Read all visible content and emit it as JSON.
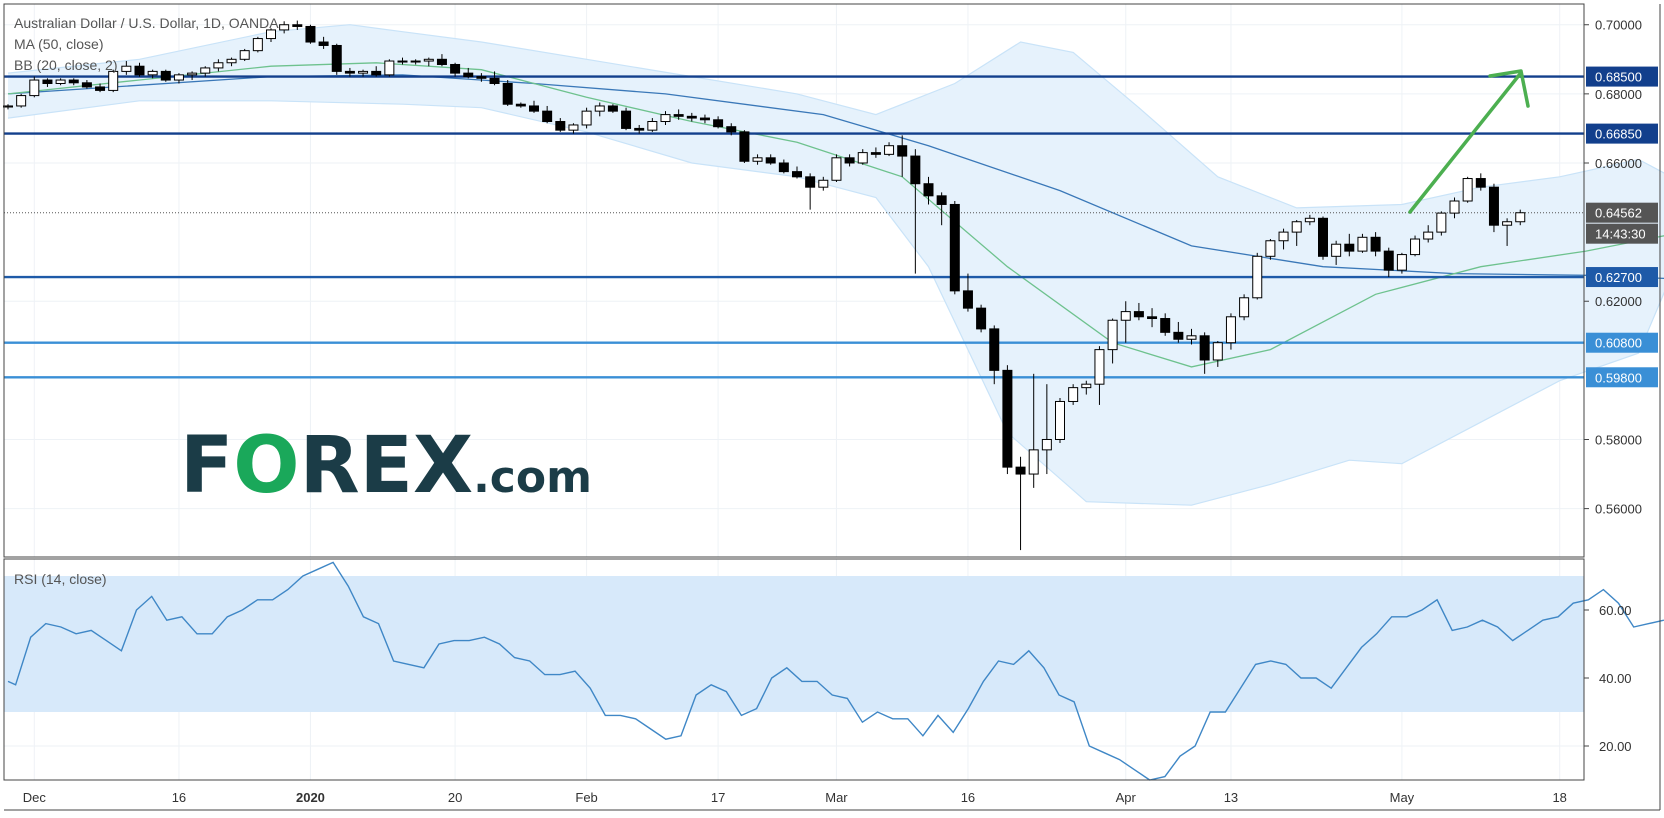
{
  "chart_data": {
    "type": "candlestick",
    "title": "Australian Dollar / U.S. Dollar, 1D, OANDA",
    "indicators": [
      "MA (50, close)",
      "BB (20, close, 2)"
    ],
    "rsi_label": "RSI (14, close)",
    "price_axis": {
      "ylim": [
        0.546,
        0.706
      ],
      "ticks": [
        "0.70000",
        "0.68000",
        "0.66000",
        "0.62000",
        "0.58000",
        "0.56000"
      ]
    },
    "rsi_axis": {
      "ylim": [
        10,
        75
      ],
      "ticks": [
        "60.00",
        "40.00",
        "20.00"
      ],
      "band": [
        30,
        70
      ]
    },
    "x_labels": [
      {
        "text": "Dec",
        "bar": 2
      },
      {
        "text": "16",
        "bar": 13
      },
      {
        "text": "2020",
        "bar": 23
      },
      {
        "text": "20",
        "bar": 34
      },
      {
        "text": "Feb",
        "bar": 44
      },
      {
        "text": "17",
        "bar": 54
      },
      {
        "text": "Mar",
        "bar": 63
      },
      {
        "text": "16",
        "bar": 73
      },
      {
        "text": "Apr",
        "bar": 85
      },
      {
        "text": "13",
        "bar": 93
      },
      {
        "text": "May",
        "bar": 106
      },
      {
        "text": "18",
        "bar": 118
      },
      {
        "text": "",
        "bar": 128
      }
    ],
    "levels": [
      {
        "value": 0.685,
        "label": "0.68500",
        "color": "#123f8c"
      },
      {
        "value": 0.6685,
        "label": "0.66850",
        "color": "#123f8c"
      },
      {
        "value": 0.627,
        "label": "0.62700",
        "color": "#1e5aa8"
      },
      {
        "value": 0.608,
        "label": "0.60800",
        "color": "#3a8fd6"
      },
      {
        "value": 0.598,
        "label": "0.59800",
        "color": "#3a8fd6"
      }
    ],
    "last_price": {
      "value": 0.64562,
      "label": "0.64562",
      "countdown": "14:43:30"
    },
    "candles": [
      [
        0.6762,
        0.677,
        0.6755,
        0.6765
      ],
      [
        0.6765,
        0.68,
        0.676,
        0.6795
      ],
      [
        0.6795,
        0.685,
        0.679,
        0.684
      ],
      [
        0.684,
        0.6845,
        0.682,
        0.683
      ],
      [
        0.683,
        0.6845,
        0.6825,
        0.684
      ],
      [
        0.684,
        0.6845,
        0.6825,
        0.6832
      ],
      [
        0.6832,
        0.684,
        0.6815,
        0.682
      ],
      [
        0.682,
        0.683,
        0.6805,
        0.681
      ],
      [
        0.681,
        0.687,
        0.6805,
        0.6865
      ],
      [
        0.6865,
        0.6895,
        0.6855,
        0.688
      ],
      [
        0.688,
        0.689,
        0.685,
        0.6855
      ],
      [
        0.6855,
        0.687,
        0.6845,
        0.6865
      ],
      [
        0.6865,
        0.687,
        0.6835,
        0.684
      ],
      [
        0.684,
        0.686,
        0.683,
        0.6855
      ],
      [
        0.6855,
        0.6865,
        0.684,
        0.686
      ],
      [
        0.686,
        0.688,
        0.685,
        0.6875
      ],
      [
        0.6875,
        0.69,
        0.6865,
        0.689
      ],
      [
        0.689,
        0.6905,
        0.688,
        0.69
      ],
      [
        0.69,
        0.693,
        0.6895,
        0.6925
      ],
      [
        0.6925,
        0.6965,
        0.692,
        0.696
      ],
      [
        0.696,
        0.699,
        0.695,
        0.6985
      ],
      [
        0.6985,
        0.701,
        0.6975,
        0.7
      ],
      [
        0.7,
        0.7012,
        0.6985,
        0.6995
      ],
      [
        0.6995,
        0.7,
        0.6945,
        0.695
      ],
      [
        0.695,
        0.6965,
        0.693,
        0.694
      ],
      [
        0.694,
        0.6945,
        0.6855,
        0.6865
      ],
      [
        0.6865,
        0.6875,
        0.685,
        0.686
      ],
      [
        0.686,
        0.687,
        0.685,
        0.6865
      ],
      [
        0.6865,
        0.688,
        0.685,
        0.6855
      ],
      [
        0.6855,
        0.69,
        0.685,
        0.6895
      ],
      [
        0.6895,
        0.6905,
        0.6885,
        0.6895
      ],
      [
        0.6895,
        0.69,
        0.6885,
        0.6895
      ],
      [
        0.6895,
        0.6905,
        0.688,
        0.69
      ],
      [
        0.69,
        0.6915,
        0.688,
        0.6885
      ],
      [
        0.6885,
        0.689,
        0.685,
        0.686
      ],
      [
        0.686,
        0.6875,
        0.6845,
        0.685
      ],
      [
        0.685,
        0.686,
        0.6835,
        0.6845
      ],
      [
        0.6845,
        0.6865,
        0.6825,
        0.683
      ],
      [
        0.683,
        0.684,
        0.6765,
        0.677
      ],
      [
        0.677,
        0.6775,
        0.676,
        0.6765
      ],
      [
        0.6765,
        0.678,
        0.6745,
        0.675
      ],
      [
        0.675,
        0.6765,
        0.6715,
        0.672
      ],
      [
        0.672,
        0.673,
        0.669,
        0.6695
      ],
      [
        0.6695,
        0.6715,
        0.6685,
        0.671
      ],
      [
        0.671,
        0.676,
        0.67,
        0.675
      ],
      [
        0.675,
        0.6775,
        0.6735,
        0.6765
      ],
      [
        0.6765,
        0.677,
        0.6745,
        0.675
      ],
      [
        0.675,
        0.676,
        0.6695,
        0.67
      ],
      [
        0.67,
        0.671,
        0.6685,
        0.6695
      ],
      [
        0.6695,
        0.673,
        0.669,
        0.672
      ],
      [
        0.672,
        0.675,
        0.671,
        0.674
      ],
      [
        0.674,
        0.6755,
        0.6725,
        0.6735
      ],
      [
        0.6735,
        0.6745,
        0.672,
        0.673
      ],
      [
        0.673,
        0.674,
        0.6715,
        0.6725
      ],
      [
        0.6725,
        0.6735,
        0.67,
        0.6705
      ],
      [
        0.6705,
        0.6715,
        0.668,
        0.669
      ],
      [
        0.669,
        0.6695,
        0.66,
        0.6605
      ],
      [
        0.6605,
        0.6625,
        0.6595,
        0.6615
      ],
      [
        0.6615,
        0.6625,
        0.6595,
        0.66
      ],
      [
        0.66,
        0.661,
        0.657,
        0.6575
      ],
      [
        0.6575,
        0.659,
        0.6555,
        0.656
      ],
      [
        0.656,
        0.657,
        0.6465,
        0.653
      ],
      [
        0.653,
        0.656,
        0.652,
        0.655
      ],
      [
        0.655,
        0.6625,
        0.6545,
        0.6615
      ],
      [
        0.6615,
        0.6625,
        0.659,
        0.66
      ],
      [
        0.66,
        0.664,
        0.6595,
        0.663
      ],
      [
        0.663,
        0.6645,
        0.6615,
        0.6625
      ],
      [
        0.6625,
        0.666,
        0.662,
        0.665
      ],
      [
        0.665,
        0.668,
        0.656,
        0.662
      ],
      [
        0.662,
        0.664,
        0.628,
        0.654
      ],
      [
        0.654,
        0.656,
        0.648,
        0.6505
      ],
      [
        0.6505,
        0.6515,
        0.642,
        0.648
      ],
      [
        0.648,
        0.649,
        0.622,
        0.623
      ],
      [
        0.623,
        0.628,
        0.617,
        0.618
      ],
      [
        0.618,
        0.619,
        0.611,
        0.612
      ],
      [
        0.612,
        0.613,
        0.596,
        0.6
      ],
      [
        0.6,
        0.6015,
        0.57,
        0.572
      ],
      [
        0.572,
        0.575,
        0.548,
        0.57
      ],
      [
        0.57,
        0.599,
        0.566,
        0.577
      ],
      [
        0.577,
        0.596,
        0.57,
        0.58
      ],
      [
        0.58,
        0.592,
        0.579,
        0.591
      ],
      [
        0.591,
        0.596,
        0.59,
        0.595
      ],
      [
        0.595,
        0.597,
        0.593,
        0.596
      ],
      [
        0.596,
        0.607,
        0.59,
        0.606
      ],
      [
        0.606,
        0.615,
        0.602,
        0.6145
      ],
      [
        0.6145,
        0.62,
        0.608,
        0.617
      ],
      [
        0.617,
        0.6195,
        0.6145,
        0.6155
      ],
      [
        0.6155,
        0.618,
        0.6125,
        0.615
      ],
      [
        0.615,
        0.6165,
        0.61,
        0.611
      ],
      [
        0.611,
        0.614,
        0.608,
        0.609
      ],
      [
        0.609,
        0.612,
        0.6075,
        0.61
      ],
      [
        0.61,
        0.611,
        0.599,
        0.603
      ],
      [
        0.603,
        0.6085,
        0.601,
        0.608
      ],
      [
        0.608,
        0.6165,
        0.606,
        0.6155
      ],
      [
        0.6155,
        0.622,
        0.6145,
        0.621
      ],
      [
        0.621,
        0.634,
        0.6205,
        0.633
      ],
      [
        0.633,
        0.638,
        0.632,
        0.6375
      ],
      [
        0.6375,
        0.641,
        0.635,
        0.64
      ],
      [
        0.64,
        0.6435,
        0.636,
        0.643
      ],
      [
        0.643,
        0.645,
        0.642,
        0.644
      ],
      [
        0.644,
        0.6445,
        0.632,
        0.633
      ],
      [
        0.633,
        0.6375,
        0.6305,
        0.6365
      ],
      [
        0.6365,
        0.6395,
        0.633,
        0.6345
      ],
      [
        0.6345,
        0.6395,
        0.634,
        0.6385
      ],
      [
        0.6385,
        0.64,
        0.633,
        0.6345
      ],
      [
        0.6345,
        0.6355,
        0.627,
        0.629
      ],
      [
        0.629,
        0.634,
        0.628,
        0.6335
      ],
      [
        0.6335,
        0.639,
        0.633,
        0.638
      ],
      [
        0.638,
        0.642,
        0.637,
        0.64
      ],
      [
        0.64,
        0.646,
        0.639,
        0.6455
      ],
      [
        0.6455,
        0.65,
        0.644,
        0.649
      ],
      [
        0.649,
        0.656,
        0.6485,
        0.6555
      ],
      [
        0.6555,
        0.657,
        0.652,
        0.653
      ],
      [
        0.653,
        0.654,
        0.64,
        0.642
      ],
      [
        0.642,
        0.644,
        0.636,
        0.643
      ],
      [
        0.643,
        0.6465,
        0.642,
        0.6456
      ]
    ],
    "ma50": [
      [
        0,
        0.68
      ],
      [
        20,
        0.685
      ],
      [
        30,
        0.6855
      ],
      [
        40,
        0.683
      ],
      [
        50,
        0.68
      ],
      [
        62,
        0.674
      ],
      [
        70,
        0.665
      ],
      [
        80,
        0.652
      ],
      [
        90,
        0.636
      ],
      [
        100,
        0.63
      ],
      [
        110,
        0.628
      ],
      [
        120,
        0.6275
      ],
      [
        126,
        0.6266
      ]
    ],
    "bb_mid": [
      [
        0,
        0.68
      ],
      [
        10,
        0.684
      ],
      [
        20,
        0.688
      ],
      [
        28,
        0.689
      ],
      [
        36,
        0.687
      ],
      [
        44,
        0.679
      ],
      [
        52,
        0.672
      ],
      [
        60,
        0.666
      ],
      [
        68,
        0.656
      ],
      [
        76,
        0.63
      ],
      [
        84,
        0.608
      ],
      [
        90,
        0.601
      ],
      [
        96,
        0.606
      ],
      [
        104,
        0.622
      ],
      [
        112,
        0.63
      ],
      [
        120,
        0.6345
      ],
      [
        126,
        0.639
      ]
    ],
    "bb_upper": [
      [
        0,
        0.686
      ],
      [
        10,
        0.69
      ],
      [
        20,
        0.698
      ],
      [
        26,
        0.7
      ],
      [
        30,
        0.698
      ],
      [
        36,
        0.695
      ],
      [
        44,
        0.69
      ],
      [
        52,
        0.685
      ],
      [
        60,
        0.68
      ],
      [
        66,
        0.674
      ],
      [
        72,
        0.683
      ],
      [
        77,
        0.695
      ],
      [
        81,
        0.692
      ],
      [
        86,
        0.676
      ],
      [
        92,
        0.656
      ],
      [
        98,
        0.647
      ],
      [
        106,
        0.648
      ],
      [
        112,
        0.653
      ],
      [
        118,
        0.656
      ],
      [
        124,
        0.661
      ],
      [
        126,
        0.657
      ]
    ],
    "bb_lower": [
      [
        0,
        0.673
      ],
      [
        10,
        0.678
      ],
      [
        20,
        0.678
      ],
      [
        30,
        0.677
      ],
      [
        36,
        0.676
      ],
      [
        44,
        0.669
      ],
      [
        52,
        0.66
      ],
      [
        60,
        0.656
      ],
      [
        66,
        0.65
      ],
      [
        70,
        0.63
      ],
      [
        76,
        0.582
      ],
      [
        82,
        0.562
      ],
      [
        90,
        0.561
      ],
      [
        96,
        0.567
      ],
      [
        102,
        0.574
      ],
      [
        106,
        0.573
      ],
      [
        112,
        0.585
      ],
      [
        118,
        0.597
      ],
      [
        124,
        0.605
      ],
      [
        126,
        0.623
      ]
    ],
    "rsi": [
      [
        0,
        39
      ],
      [
        1,
        38
      ],
      [
        3,
        52
      ],
      [
        5,
        56
      ],
      [
        7,
        55
      ],
      [
        9,
        53
      ],
      [
        11,
        54
      ],
      [
        13,
        51
      ],
      [
        15,
        48
      ],
      [
        17,
        60
      ],
      [
        19,
        64
      ],
      [
        21,
        57
      ],
      [
        23,
        58
      ],
      [
        25,
        53
      ],
      [
        27,
        53
      ],
      [
        29,
        58
      ],
      [
        31,
        60
      ],
      [
        33,
        63
      ],
      [
        35,
        63
      ],
      [
        37,
        66
      ],
      [
        39,
        70
      ],
      [
        41,
        72
      ],
      [
        43,
        74
      ],
      [
        45,
        67
      ],
      [
        47,
        58
      ],
      [
        49,
        56
      ],
      [
        51,
        45
      ],
      [
        53,
        44
      ],
      [
        55,
        43
      ],
      [
        57,
        50
      ],
      [
        59,
        51
      ],
      [
        61,
        51
      ],
      [
        63,
        52
      ],
      [
        65,
        50
      ],
      [
        67,
        46
      ],
      [
        69,
        45
      ],
      [
        71,
        41
      ],
      [
        73,
        41
      ],
      [
        75,
        42
      ],
      [
        77,
        37
      ],
      [
        79,
        29
      ],
      [
        81,
        29
      ],
      [
        83,
        28
      ],
      [
        85,
        25
      ],
      [
        87,
        22
      ],
      [
        89,
        23
      ],
      [
        91,
        35
      ],
      [
        93,
        38
      ],
      [
        95,
        36
      ],
      [
        97,
        29
      ],
      [
        99,
        31
      ],
      [
        101,
        40
      ],
      [
        103,
        43
      ],
      [
        105,
        39
      ],
      [
        107,
        39
      ],
      [
        109,
        35
      ],
      [
        111,
        34
      ],
      [
        113,
        27
      ],
      [
        115,
        30
      ],
      [
        117,
        28
      ],
      [
        119,
        28
      ],
      [
        121,
        23
      ],
      [
        123,
        29
      ],
      [
        125,
        24
      ],
      [
        127,
        31
      ],
      [
        129,
        39
      ],
      [
        131,
        45
      ],
      [
        133,
        44
      ],
      [
        135,
        48
      ],
      [
        137,
        43
      ],
      [
        139,
        35
      ],
      [
        141,
        33
      ],
      [
        143,
        20
      ],
      [
        145,
        18
      ],
      [
        147,
        16
      ],
      [
        149,
        13
      ],
      [
        151,
        10
      ],
      [
        153,
        11
      ],
      [
        155,
        17
      ],
      [
        157,
        20
      ],
      [
        159,
        30
      ],
      [
        161,
        30
      ],
      [
        163,
        37
      ],
      [
        165,
        44
      ],
      [
        167,
        45
      ],
      [
        169,
        44
      ],
      [
        171,
        40
      ],
      [
        173,
        40
      ],
      [
        175,
        37
      ],
      [
        177,
        43
      ],
      [
        179,
        49
      ],
      [
        181,
        53
      ],
      [
        183,
        58
      ],
      [
        185,
        58
      ],
      [
        187,
        60
      ],
      [
        189,
        63
      ],
      [
        191,
        54
      ],
      [
        193,
        55
      ],
      [
        195,
        57
      ],
      [
        197,
        55
      ],
      [
        199,
        51
      ],
      [
        201,
        54
      ],
      [
        203,
        57
      ],
      [
        205,
        58
      ],
      [
        207,
        62
      ],
      [
        209,
        63
      ],
      [
        211,
        66
      ],
      [
        213,
        62
      ],
      [
        215,
        55
      ],
      [
        217,
        56
      ],
      [
        219,
        57
      ]
    ],
    "rsi_x_scale": 0.575,
    "watermark": "FOREX.com",
    "colors": {
      "up_candle": "#ffffff",
      "down_candle": "#000000",
      "ma50": "#3a78b8",
      "bb_basis": "#6ec28e",
      "bb_band": "#c9e3f8",
      "bb_fill": "#e6f2fc",
      "rsi_line": "#3f87c6",
      "rsi_band": "#d7e9fa",
      "arrow": "#4caf50",
      "logo_dark": "#1b3c47",
      "logo_green": "#1aa85a"
    }
  }
}
